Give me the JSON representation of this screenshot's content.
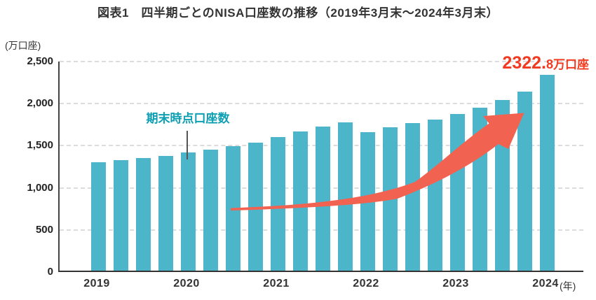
{
  "title": "図表1　四半期ごとのNISA口座数の推移（2019年3月末～2024年3月末）",
  "y_axis": {
    "unit": "(万口座)",
    "max": 2500,
    "ticks": [
      {
        "label": "0",
        "v": 0
      },
      {
        "label": "500",
        "v": 500
      },
      {
        "label": "1,000",
        "v": 1000
      },
      {
        "label": "1,500",
        "v": 1500
      },
      {
        "label": "2,000",
        "v": 2000
      },
      {
        "label": "2,500",
        "v": 2500
      }
    ]
  },
  "x_axis": {
    "years": [
      "2019",
      "2020",
      "2021",
      "2022",
      "2023",
      "2024"
    ],
    "suffix": "(年)"
  },
  "annotation": {
    "label": "期末時点口座数",
    "points_to": "2020/3"
  },
  "final_value_label": {
    "integer": "2322.",
    "decimal": "8",
    "unit": "万口座"
  },
  "colors": {
    "bar": "#4db5c9",
    "annotation": "#0d9fb2",
    "value_label": "#f13a20",
    "arrow": "#f26250",
    "title_text": "#333333",
    "tick_text": "#222222",
    "gridline": "#dcdcdc",
    "axis_y": "#444444",
    "axis_x": "#333333",
    "pointer": "#555555"
  },
  "chart_data": {
    "type": "bar",
    "title": "図表1　四半期ごとのNISA口座数の推移（2019年3月末～2024年3月末）",
    "xlabel": "年",
    "ylabel": "万口座",
    "ylim": [
      0,
      2500
    ],
    "grid": "horizontal-dashed",
    "legend": "none",
    "categories": [
      "2019/3",
      "2019/6",
      "2019/9",
      "2019/12",
      "2020/3",
      "2020/6",
      "2020/9",
      "2020/12",
      "2021/3",
      "2021/6",
      "2021/9",
      "2021/12",
      "2022/3",
      "2022/6",
      "2022/9",
      "2022/12",
      "2023/3",
      "2023/6",
      "2023/9",
      "2023/12",
      "2024/3"
    ],
    "values": [
      1285,
      1310,
      1340,
      1365,
      1405,
      1440,
      1475,
      1520,
      1585,
      1655,
      1715,
      1765,
      1645,
      1700,
      1750,
      1790,
      1860,
      1935,
      2030,
      2130,
      2322.8
    ],
    "year_tick_bar_indices": [
      0,
      4,
      8,
      12,
      16,
      20
    ],
    "annotations": [
      {
        "text": "期末時点口座数",
        "target_category": "2020/3"
      },
      {
        "text": "2322.8万口座",
        "target_category": "2024/3"
      }
    ]
  }
}
